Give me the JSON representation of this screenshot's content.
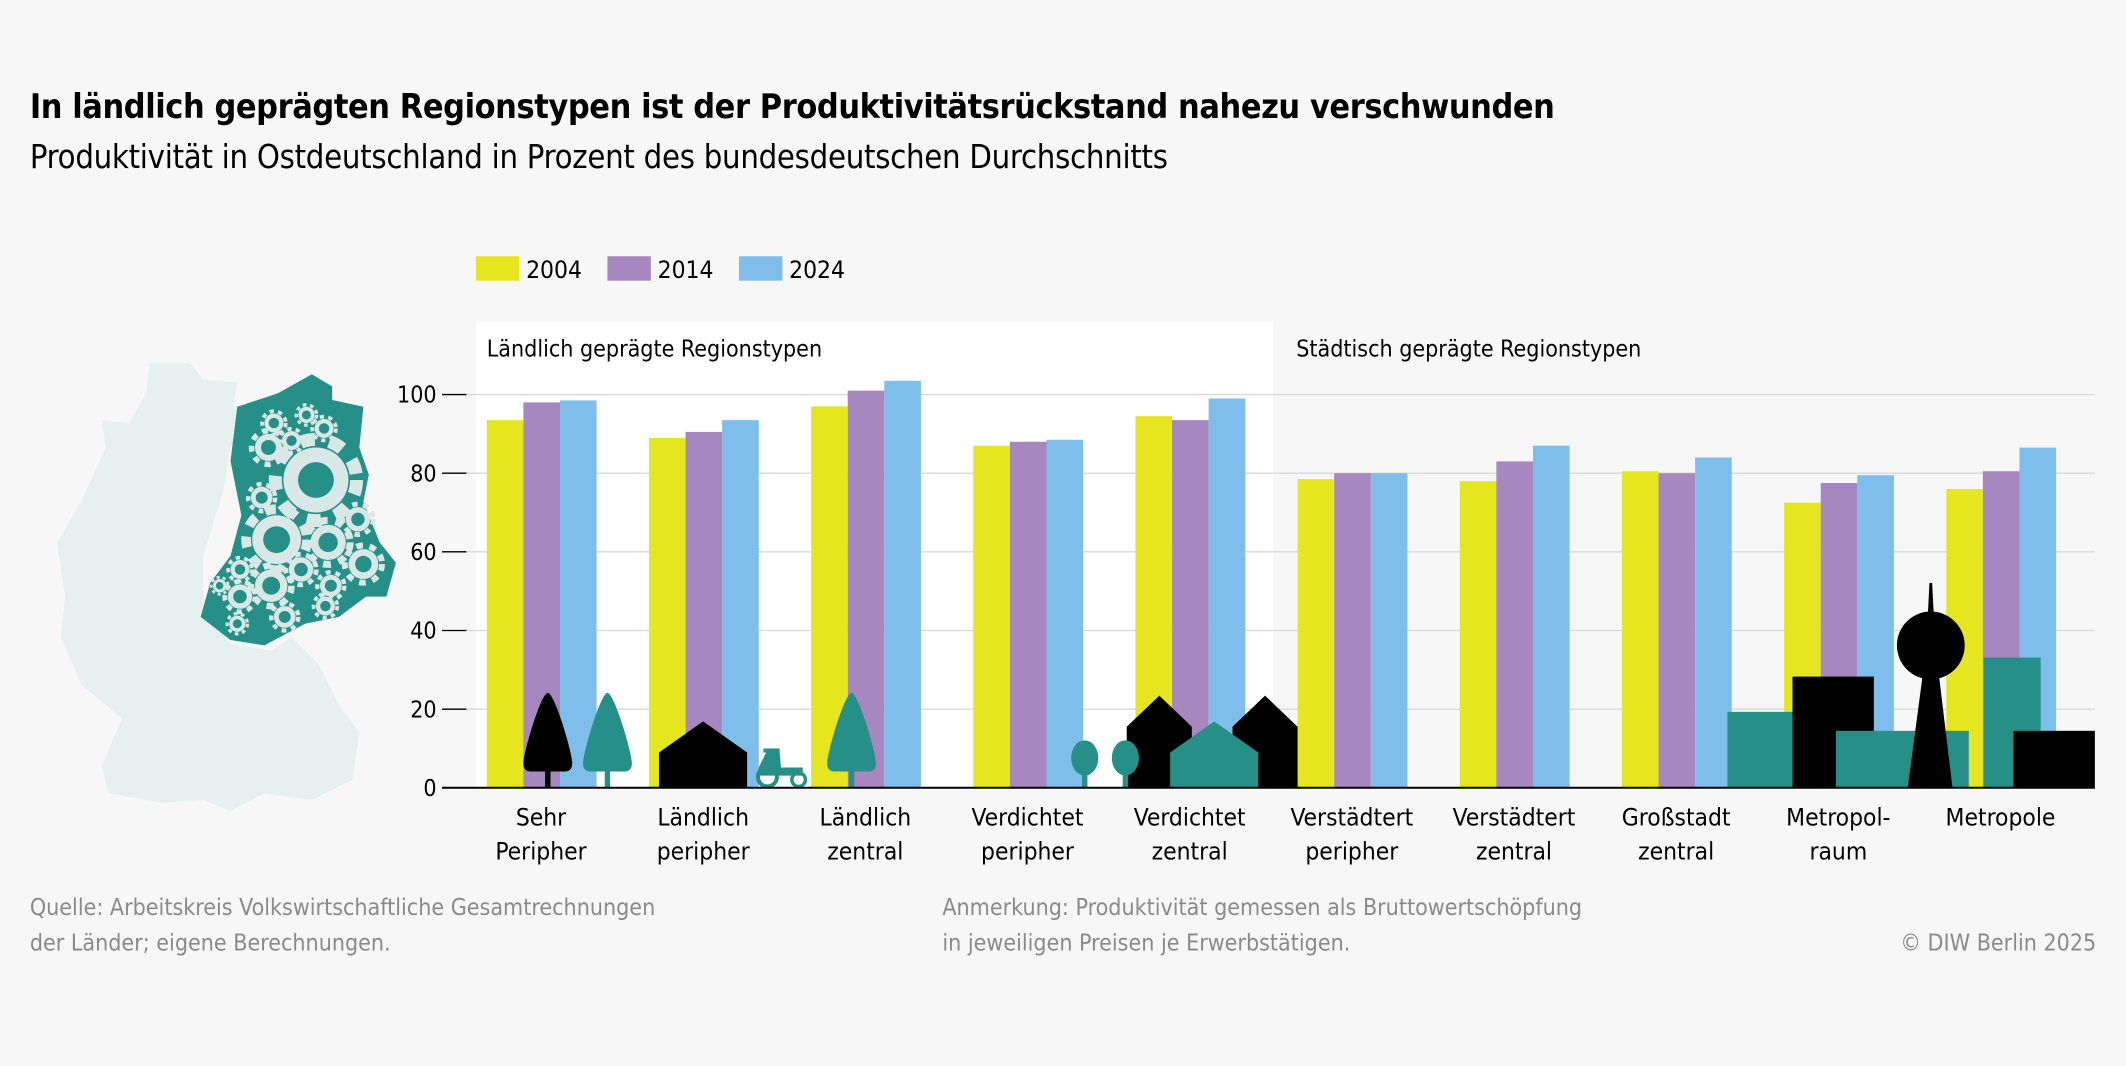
{
  "title": "In ländlich geprägten Regionstypen ist der Produktivitätsrückstand nahezu verschwunden",
  "subtitle": "Produktivität in Ostdeutschland in Prozent des bundesdeutschen Durchschnitts",
  "source_lines": [
    "Quelle: Arbeitskreis Volkswirtschaftliche Gesamtrechnungen",
    "der Länder; eigene Berechnungen."
  ],
  "note_lines": [
    "Anmerkung: Produktivität gemessen als Bruttowertschöpfung",
    "in jeweiligen Preisen je Erwerbstätigen."
  ],
  "copyright": "© DIW Berlin 2025",
  "chart_data": {
    "type": "bar",
    "title": "In ländlich geprägten Regionstypen ist der Produktivitätsrückstand nahezu verschwunden",
    "subtitle": "Produktivität in Ostdeutschland in Prozent des bundesdeutschen Durchschnitts",
    "categories": [
      [
        "Sehr",
        "Peripher"
      ],
      [
        "Ländlich",
        "peripher"
      ],
      [
        "Ländlich",
        "zentral"
      ],
      [
        "Verdichtet",
        "peripher"
      ],
      [
        "Verdichtet",
        "zentral"
      ],
      [
        "Verstädtert",
        "peripher"
      ],
      [
        "Verstädtert",
        "zentral"
      ],
      [
        "Großstadt",
        "zentral"
      ],
      [
        "Metropol-",
        "raum"
      ],
      [
        "Metropole"
      ]
    ],
    "groups": [
      {
        "label": "Ländlich geprägte Regionstypen",
        "categories": 5
      },
      {
        "label": "Städtisch geprägte Regionstypen",
        "categories": 5
      }
    ],
    "series": [
      {
        "name": "2004",
        "color": "#e5e620",
        "values": [
          93.5,
          89,
          97,
          87,
          94.5,
          78.5,
          78,
          80.5,
          72.5,
          76
        ]
      },
      {
        "name": "2014",
        "color": "#a687bf",
        "values": [
          98,
          90.5,
          101,
          88,
          93.5,
          80,
          83,
          80,
          77.5,
          80.5
        ]
      },
      {
        "name": "2024",
        "color": "#7fbdeb",
        "values": [
          98.5,
          93.5,
          103.5,
          88.5,
          99,
          80,
          87,
          84,
          79.5,
          86.5
        ]
      }
    ],
    "yticks": [
      0,
      20,
      40,
      60,
      80,
      100
    ],
    "ylim": [
      0,
      115
    ],
    "grid": true,
    "legend": "top-left",
    "icon_color_teal": "#268f87",
    "map_colors": {
      "west": "#e6f0ef",
      "east": "#268f87",
      "gears": "#d7e8e6"
    }
  }
}
